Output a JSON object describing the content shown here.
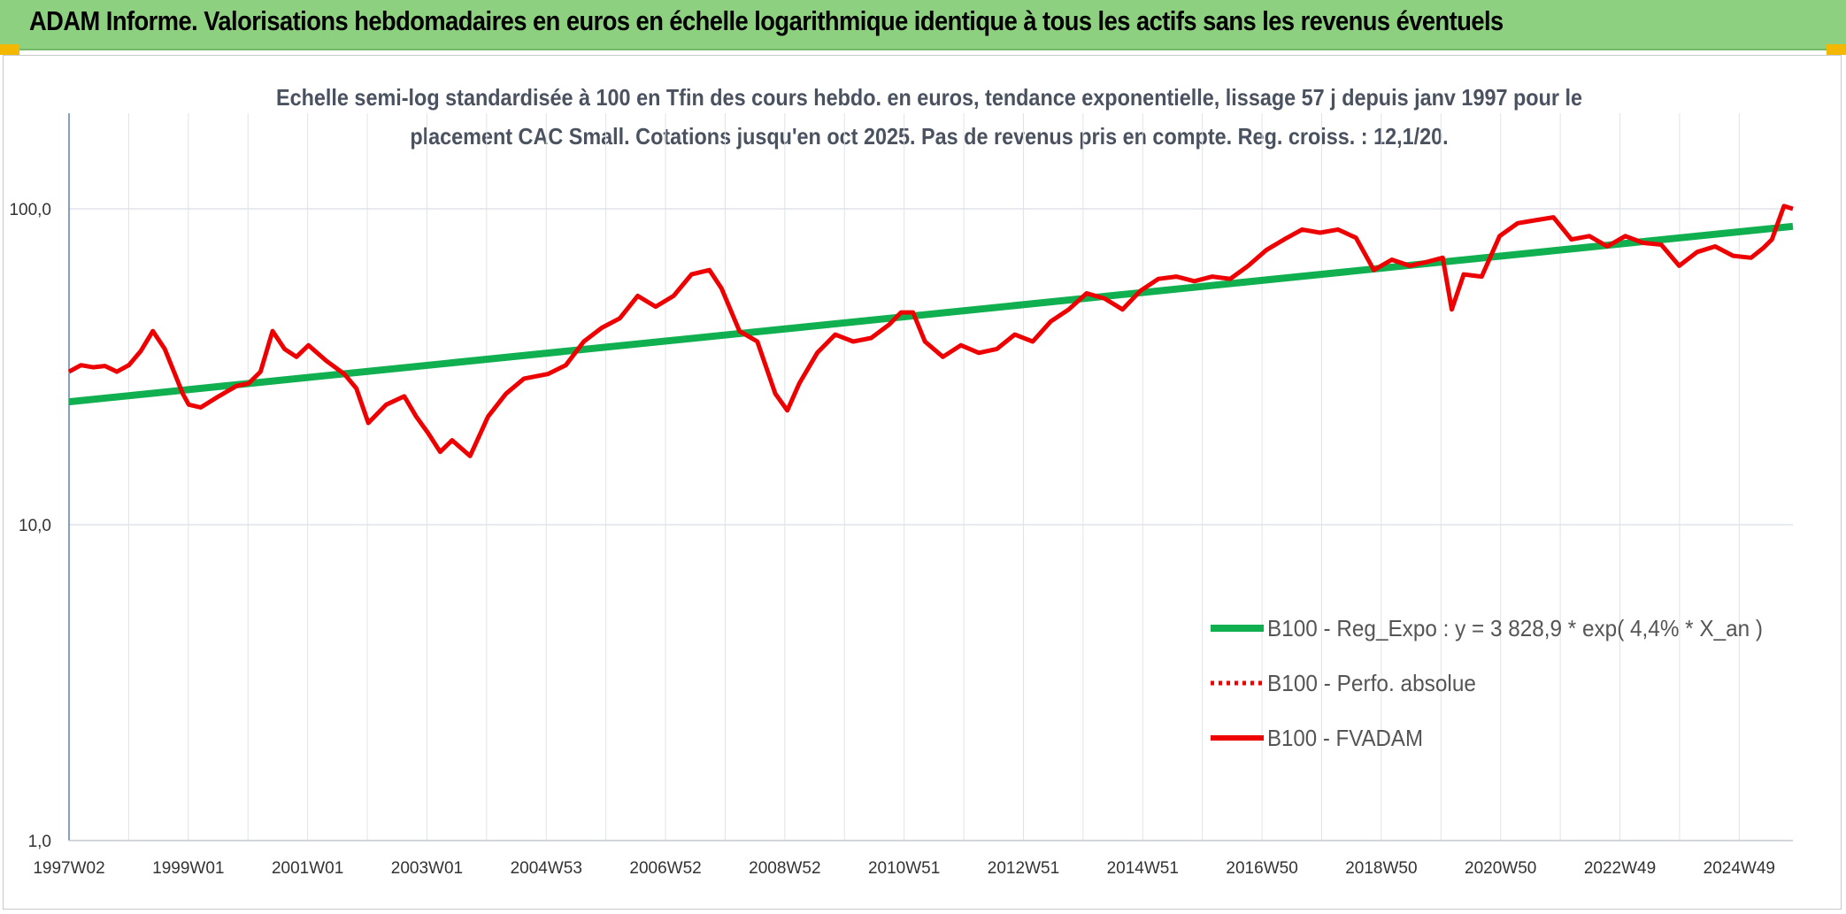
{
  "header": {
    "title": "ADAM Informe. Valorisations hebdomadaires en euros en échelle logarithmique identique à tous les actifs sans les revenus éventuels"
  },
  "chart_data": {
    "type": "line",
    "title": "Echelle semi-log standardisée à 100 en Tfin des cours hebdo. en euros, tendance exponentielle, lissage 57 j depuis janv 1997 pour le placement CAC Small. Cotations jusqu'en oct 2025. Pas de revenus pris en compte. Reg. croiss. : 12,1/20.",
    "title_lines": [
      "Echelle semi-log standardisée à 100 en Tfin des cours hebdo. en euros, tendance exponentielle, lissage 57 j depuis janv 1997 pour le",
      "placement CAC Small. Cotations jusqu'en oct 2025. Pas de revenus pris en compte. Reg. croiss. : 12,1/20."
    ],
    "y_scale": "log",
    "ylim": [
      1,
      100
    ],
    "y_ticks": [
      "1,0",
      "10,0",
      "100,0"
    ],
    "x_tick_labels": [
      "1997W02",
      "1999W01",
      "2001W01",
      "2003W01",
      "2004W53",
      "2006W52",
      "2008W52",
      "2010W51",
      "2012W51",
      "2014W51",
      "2016W50",
      "2018W50",
      "2020W50",
      "2022W49",
      "2024W49"
    ],
    "xlim": [
      1997.0,
      2025.8
    ],
    "grid": true,
    "legend_position": "bottom-right",
    "colors": {
      "trend": "#10b050",
      "fvadam": "#ee0000",
      "perfo": "#ee0000"
    },
    "series": [
      {
        "name": "B100 - Reg_Expo : y = 3 828,9 * exp( 4,4% *  X_an )",
        "kind": "trend",
        "x": [
          1997.0,
          2025.8
        ],
        "y": [
          24.5,
          88.0
        ]
      },
      {
        "name": "B100 - Perfo. absolue",
        "kind": "dotted",
        "x": [],
        "y": []
      },
      {
        "name": "B100 - FVADAM",
        "kind": "line",
        "x": [
          1997.0,
          1997.2,
          1997.4,
          1997.6,
          1997.8,
          1998.0,
          1998.2,
          1998.4,
          1998.6,
          1998.8,
          1998.9,
          1999.0,
          1999.2,
          1999.5,
          1999.8,
          2000.0,
          2000.2,
          2000.4,
          2000.6,
          2000.8,
          2001.0,
          2001.3,
          2001.6,
          2001.8,
          2002.0,
          2002.3,
          2002.6,
          2002.8,
          2003.0,
          2003.2,
          2003.4,
          2003.7,
          2004.0,
          2004.3,
          2004.6,
          2005.0,
          2005.3,
          2005.6,
          2005.9,
          2006.2,
          2006.5,
          2006.8,
          2007.1,
          2007.4,
          2007.7,
          2007.9,
          2008.2,
          2008.5,
          2008.8,
          2009.0,
          2009.2,
          2009.5,
          2009.8,
          2010.1,
          2010.4,
          2010.7,
          2010.9,
          2011.1,
          2011.3,
          2011.6,
          2011.9,
          2012.2,
          2012.5,
          2012.8,
          2013.1,
          2013.4,
          2013.7,
          2014.0,
          2014.3,
          2014.6,
          2014.9,
          2015.2,
          2015.5,
          2015.8,
          2016.1,
          2016.4,
          2016.7,
          2017.0,
          2017.3,
          2017.6,
          2017.9,
          2018.2,
          2018.5,
          2018.8,
          2019.1,
          2019.4,
          2019.7,
          2019.95,
          2020.1,
          2020.3,
          2020.6,
          2020.9,
          2021.2,
          2021.5,
          2021.8,
          2022.1,
          2022.4,
          2022.7,
          2023.0,
          2023.3,
          2023.6,
          2023.9,
          2024.2,
          2024.5,
          2024.8,
          2025.1,
          2025.3,
          2025.45,
          2025.65,
          2025.8
        ],
        "y": [
          30.5,
          32.0,
          31.5,
          31.8,
          30.5,
          32.0,
          35.5,
          41.0,
          36.0,
          29.0,
          26.0,
          24.0,
          23.5,
          25.5,
          27.5,
          28.0,
          30.5,
          41.0,
          36.0,
          34.0,
          37.0,
          33.0,
          30.0,
          27.0,
          21.0,
          24.0,
          25.5,
          22.0,
          19.5,
          17.0,
          18.5,
          16.5,
          22.0,
          26.0,
          29.0,
          30.0,
          32.0,
          38.0,
          42.0,
          45.0,
          53.0,
          49.0,
          53.0,
          62.0,
          64.0,
          56.0,
          41.0,
          38.0,
          26.0,
          23.0,
          28.0,
          35.0,
          40.0,
          38.0,
          39.0,
          43.0,
          47.0,
          47.0,
          38.0,
          34.0,
          37.0,
          35.0,
          36.0,
          40.0,
          38.0,
          44.0,
          48.0,
          54.0,
          52.0,
          48.0,
          55.0,
          60.0,
          61.0,
          59.0,
          61.0,
          60.0,
          66.0,
          74.0,
          80.0,
          86.0,
          84.0,
          86.0,
          81.0,
          64.0,
          69.0,
          66.0,
          68.0,
          70.0,
          48.0,
          62.0,
          61.0,
          82.0,
          90.0,
          92.0,
          94.0,
          80.0,
          82.0,
          76.0,
          82.0,
          78.0,
          77.0,
          66.0,
          73.0,
          76.0,
          71.0,
          70.0,
          75.0,
          80.0,
          102.0,
          100.0
        ]
      }
    ]
  }
}
